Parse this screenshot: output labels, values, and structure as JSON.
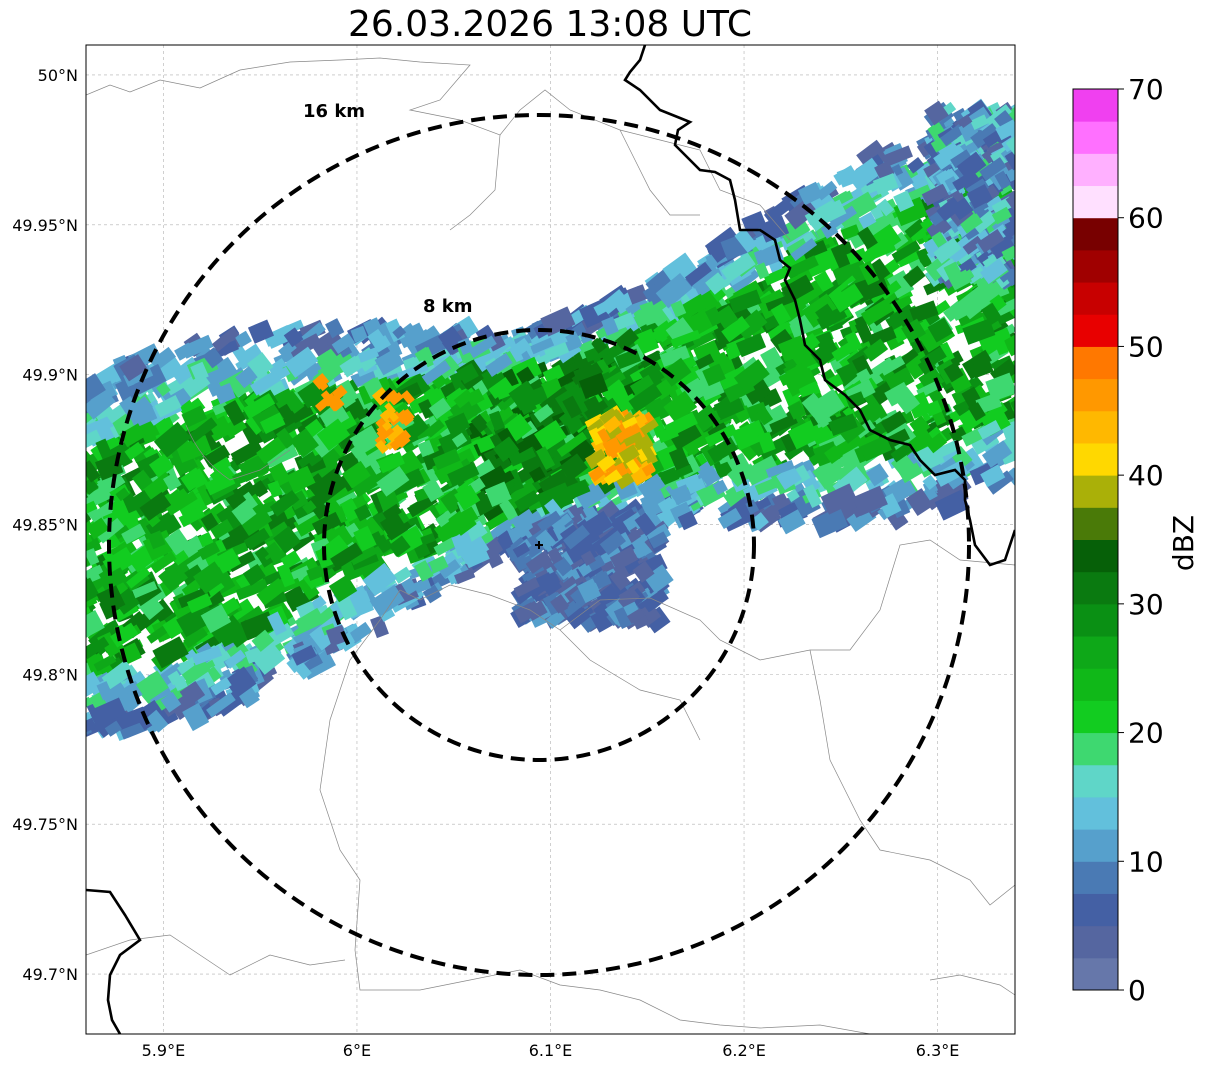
{
  "title": "26.03.2026 13:08 UTC",
  "map": {
    "lon_range": [
      5.86,
      6.34
    ],
    "lat_range": [
      49.68,
      50.01
    ],
    "lon_ticks": [
      {
        "value": 5.9,
        "label": "5.9°E"
      },
      {
        "value": 6.0,
        "label": "6°E"
      },
      {
        "value": 6.1,
        "label": "6.1°E"
      },
      {
        "value": 6.2,
        "label": "6.2°E"
      },
      {
        "value": 6.3,
        "label": "6.3°E"
      }
    ],
    "lat_ticks": [
      {
        "value": 50.0,
        "label": "50°N"
      },
      {
        "value": 49.95,
        "label": "49.95°N"
      },
      {
        "value": 49.9,
        "label": "49.9°N"
      },
      {
        "value": 49.85,
        "label": "49.85°N"
      },
      {
        "value": 49.8,
        "label": "49.8°N"
      },
      {
        "value": 49.75,
        "label": "49.75°N"
      },
      {
        "value": 49.7,
        "label": "49.7°N"
      }
    ],
    "gridlines": true,
    "radar_site": {
      "lon": 6.095,
      "lat": 49.843
    },
    "range_rings": [
      {
        "label": "8 km",
        "radius_km": 8
      },
      {
        "label": "16 km",
        "radius_km": 16
      }
    ]
  },
  "colorbar": {
    "label": "dBZ",
    "range": [
      0,
      70
    ],
    "ticks": [
      "0",
      "10",
      "20",
      "30",
      "40",
      "50",
      "60",
      "70"
    ],
    "colors": [
      "#6677aa",
      "#5566a0",
      "#4460a4",
      "#4a7ab4",
      "#56a0cc",
      "#62c0dc",
      "#5fd6c8",
      "#3ed870",
      "#12cc20",
      "#10b818",
      "#0ea818",
      "#0a9014",
      "#0a7a10",
      "#066008",
      "#4a7a08",
      "#aab008",
      "#ffd800",
      "#ffb800",
      "#ff9800",
      "#ff7800",
      "#e80000",
      "#c80000",
      "#a00000",
      "#780000",
      "#ffe0ff",
      "#ffb0ff",
      "#ff70ff",
      "#f040f0"
    ]
  }
}
